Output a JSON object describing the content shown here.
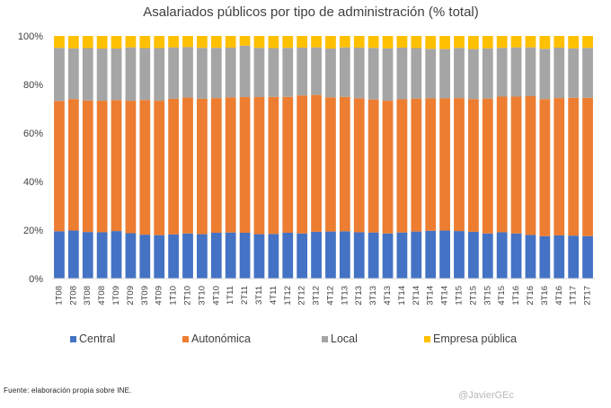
{
  "chart_data": {
    "type": "bar",
    "stacked": true,
    "title": "Asalariados públicos por tipo de administración (% total)",
    "xlabel": "",
    "ylabel": "",
    "ylim": [
      0,
      100
    ],
    "yticks": [
      "0%",
      "20%",
      "40%",
      "60%",
      "80%",
      "100%"
    ],
    "categories": [
      "1T08",
      "2T08",
      "3T08",
      "4T08",
      "1T09",
      "2T09",
      "3T09",
      "4T09",
      "1T10",
      "2T10",
      "3T10",
      "4T10",
      "1T11",
      "2T11",
      "3T11",
      "4T11",
      "1T12",
      "2T12",
      "3T12",
      "4T12",
      "1T13",
      "2T13",
      "3T13",
      "4T13",
      "1T14",
      "2T14",
      "3T14",
      "4T14",
      "1T15",
      "2T15",
      "3T15",
      "4T15",
      "1T16",
      "2T16",
      "3T16",
      "4T16",
      "1T17",
      "2T17"
    ],
    "series": [
      {
        "name": "Central",
        "color": "#4472C4",
        "values": [
          19.5,
          19.8,
          19.2,
          19.1,
          19.6,
          18.7,
          18.1,
          17.9,
          18.2,
          18.6,
          18.3,
          18.9,
          19.0,
          18.9,
          18.3,
          18.4,
          18.9,
          18.6,
          19.3,
          19.4,
          19.5,
          19.1,
          19.0,
          18.6,
          19.0,
          19.4,
          19.7,
          19.8,
          19.6,
          19.3,
          18.6,
          19.1,
          18.6,
          18.0,
          17.5,
          17.8,
          17.7,
          17.5
        ]
      },
      {
        "name": "Autonómica",
        "color": "#ED7D31",
        "values": [
          53.7,
          54.2,
          54.2,
          54.2,
          54.0,
          54.6,
          55.5,
          55.4,
          55.9,
          56.0,
          55.8,
          55.5,
          55.7,
          55.9,
          56.5,
          56.5,
          56.0,
          56.9,
          56.4,
          55.3,
          55.4,
          55.2,
          54.8,
          54.7,
          54.9,
          54.8,
          54.6,
          54.5,
          54.8,
          54.7,
          55.6,
          55.9,
          56.4,
          57.2,
          56.5,
          56.6,
          56.8,
          57.0
        ]
      },
      {
        "name": "Local",
        "color": "#A5A5A5",
        "values": [
          21.9,
          20.9,
          21.6,
          21.5,
          21.2,
          22.0,
          21.4,
          21.7,
          21.2,
          20.8,
          21.0,
          20.7,
          20.5,
          21.2,
          20.3,
          20.1,
          20.2,
          19.7,
          19.6,
          20.1,
          20.4,
          20.9,
          21.3,
          21.6,
          21.3,
          20.8,
          20.4,
          20.3,
          20.7,
          20.6,
          20.7,
          20.1,
          20.3,
          20.1,
          20.7,
          20.8,
          20.4,
          20.6
        ]
      },
      {
        "name": "Empresa pública",
        "color": "#FFC000",
        "values": [
          4.9,
          5.1,
          5.0,
          5.2,
          5.2,
          4.7,
          5.0,
          5.0,
          4.7,
          4.6,
          4.9,
          4.9,
          4.8,
          4.0,
          4.9,
          5.0,
          4.9,
          4.8,
          4.7,
          5.2,
          4.7,
          4.8,
          4.9,
          5.1,
          4.8,
          5.0,
          5.3,
          5.4,
          4.9,
          5.4,
          5.1,
          4.9,
          4.7,
          4.7,
          5.3,
          4.8,
          5.1,
          4.9
        ]
      }
    ],
    "legend_position": "bottom"
  },
  "source_note": "Fuente: elaboración propia sobre INE.",
  "signature": "@JavierGEc"
}
